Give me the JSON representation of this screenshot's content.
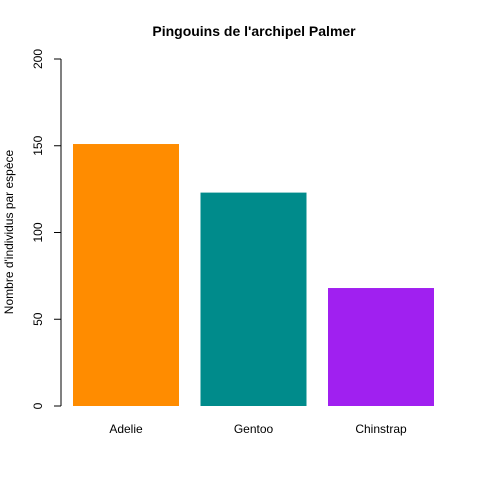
{
  "chart_data": {
    "type": "bar",
    "title": "Pingouins de l'archipel Palmer",
    "xlabel": "",
    "ylabel": "Nombre d'individus par espèce",
    "categories": [
      "Adelie",
      "Gentoo",
      "Chinstrap"
    ],
    "values": [
      151,
      123,
      68
    ],
    "colors": [
      "#FF8C00",
      "#008B8B",
      "#A020F0"
    ],
    "ylim": [
      0,
      200
    ],
    "yticks": [
      "0",
      "50",
      "100",
      "150",
      "200"
    ],
    "grid": false,
    "legend": "none"
  }
}
